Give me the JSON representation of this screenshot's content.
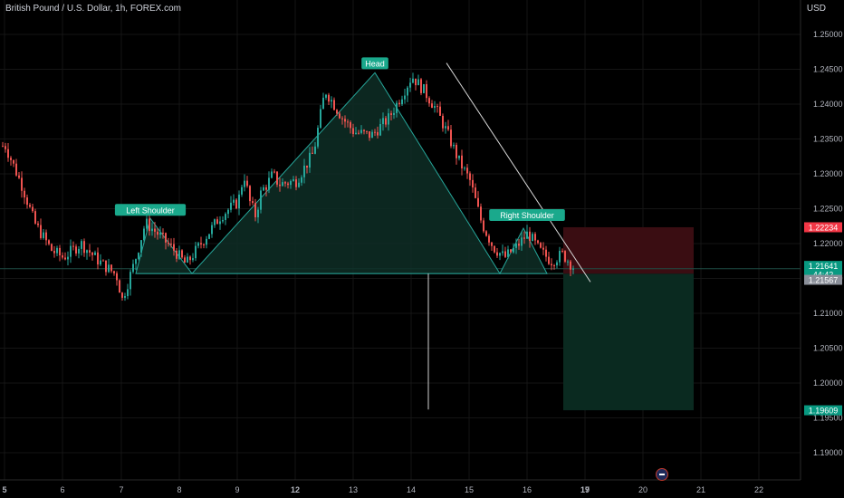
{
  "header": {
    "symbol_title": "British Pound / U.S. Dollar, 1h, FOREX.com",
    "currency": "USD"
  },
  "chart_data": {
    "type": "candlestick",
    "ylim": [
      1.1855,
      1.2555
    ],
    "y_ticks": [
      1.25,
      1.245,
      1.24,
      1.235,
      1.23,
      1.225,
      1.22,
      1.215,
      1.21,
      1.205,
      1.2,
      1.195,
      1.19
    ],
    "y_tick_labels": [
      "1.25000",
      "1.24500",
      "1.24000",
      "1.23500",
      "1.23000",
      "1.22500",
      "1.22000",
      "1.21500",
      "1.21000",
      "1.20500",
      "1.20000",
      "1.19500",
      "1.19000"
    ],
    "x_ticks": [
      {
        "day": 5,
        "label": "5",
        "bold": true
      },
      {
        "day": 6,
        "label": "6",
        "bold": false
      },
      {
        "day": 7,
        "label": "7",
        "bold": false
      },
      {
        "day": 8,
        "label": "8",
        "bold": false
      },
      {
        "day": 9,
        "label": "9",
        "bold": false
      },
      {
        "day": 12,
        "label": "12",
        "bold": true
      },
      {
        "day": 13,
        "label": "13",
        "bold": false
      },
      {
        "day": 14,
        "label": "14",
        "bold": false
      },
      {
        "day": 15,
        "label": "15",
        "bold": false
      },
      {
        "day": 16,
        "label": "16",
        "bold": false
      },
      {
        "day": 17,
        "label": "17",
        "bold": false
      },
      {
        "day": 19,
        "label": "19",
        "bold": true
      },
      {
        "day": 20,
        "label": "20",
        "bold": false
      },
      {
        "day": 21,
        "label": "21",
        "bold": false
      },
      {
        "day": 22,
        "label": "22",
        "bold": false
      }
    ],
    "price_path": [
      [
        5.0,
        1.234
      ],
      [
        5.3,
        1.228
      ],
      [
        5.5,
        1.223
      ],
      [
        5.8,
        1.219
      ],
      [
        6.0,
        1.218
      ],
      [
        6.3,
        1.22
      ],
      [
        6.6,
        1.2175
      ],
      [
        6.9,
        1.2155
      ],
      [
        7.0,
        1.212
      ],
      [
        7.2,
        1.217
      ],
      [
        7.4,
        1.223
      ],
      [
        7.6,
        1.2215
      ],
      [
        7.9,
        1.219
      ],
      [
        8.1,
        1.217
      ],
      [
        8.4,
        1.2205
      ],
      [
        8.7,
        1.224
      ],
      [
        9.0,
        1.226
      ],
      [
        9.3,
        1.23
      ],
      [
        9.6,
        1.226
      ],
      [
        9.9,
        1.224
      ],
      [
        10.2,
        1.2275
      ],
      [
        10.5,
        1.2285
      ],
      [
        10.8,
        1.23
      ],
      [
        11.1,
        1.2285
      ],
      [
        12.0,
        1.229
      ],
      [
        12.3,
        1.233
      ],
      [
        12.5,
        1.242
      ],
      [
        12.8,
        1.238
      ],
      [
        13.0,
        1.236
      ],
      [
        13.3,
        1.2355
      ],
      [
        13.6,
        1.238
      ],
      [
        13.8,
        1.241
      ],
      [
        14.0,
        1.244
      ],
      [
        14.2,
        1.242
      ],
      [
        14.4,
        1.2395
      ],
      [
        14.6,
        1.236
      ],
      [
        14.8,
        1.232
      ],
      [
        15.0,
        1.229
      ],
      [
        15.2,
        1.223
      ],
      [
        15.4,
        1.2195
      ],
      [
        15.6,
        1.218
      ],
      [
        15.8,
        1.2195
      ],
      [
        16.0,
        1.2215
      ],
      [
        16.2,
        1.219
      ],
      [
        16.4,
        1.2175
      ],
      [
        16.6,
        1.2185
      ],
      [
        16.8,
        1.2165
      ]
    ],
    "last_price": "1.21641",
    "countdown": "44:42",
    "neckline_price": "1.21567",
    "pattern": {
      "left_shoulder": {
        "label": "Left Shoulder",
        "price": 1.2236
      },
      "head": {
        "label": "Head",
        "price": 1.2445
      },
      "right_shoulder": {
        "label": "Right Shoulder",
        "price": 1.2222
      }
    },
    "position": {
      "stop_price": "1.22234",
      "entry_price": "1.21567",
      "target_price": "1.19609"
    }
  },
  "colors": {
    "bull": "#26a69a",
    "bear": "#ef5350",
    "pattern_fill": "#0e2e26",
    "pattern_stroke": "#26a69a",
    "label_bg": "#1aa98c",
    "stop_zone": "#3a0d12",
    "target_zone": "#0a2a20",
    "trendline": "#d9d9d9"
  }
}
